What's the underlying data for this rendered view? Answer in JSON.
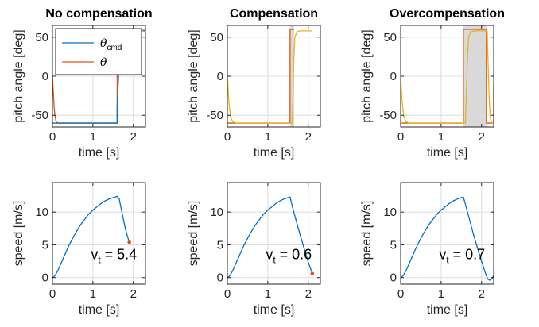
{
  "colors": {
    "cmd": "#0072BD",
    "theta": "#D95319",
    "shade": "#d9d9d9",
    "yellow": "#EDB120",
    "marker": "#D95319"
  },
  "chart_data": [
    {
      "type": "line",
      "id": "p1",
      "title": "No compensation",
      "xlabel": "time [s]",
      "ylabel": "pitch angle [deg]",
      "xlim": [
        0,
        2.3
      ],
      "ylim": [
        -65,
        65
      ],
      "xticks": [
        0,
        1,
        2
      ],
      "yticks": [
        -50,
        0,
        50
      ],
      "grid": true,
      "legend": {
        "placement": "top-left",
        "entries": [
          {
            "base": "θ",
            "sub": "cmd",
            "color": "cmd"
          },
          {
            "base": "θ",
            "sub": "",
            "color": "theta"
          }
        ]
      },
      "series": [
        {
          "id": "theta",
          "color": "theta",
          "points": [
            [
              0,
              0
            ],
            [
              0.02,
              -20
            ],
            [
              0.04,
              -38
            ],
            [
              0.06,
              -50
            ],
            [
              0.08,
              -56
            ],
            [
              0.1,
              -59
            ],
            [
              0.13,
              -60
            ],
            [
              1.6,
              -60
            ],
            [
              1.6,
              60
            ],
            [
              2.3,
              60
            ]
          ]
        },
        {
          "id": "cmd",
          "color": "cmd",
          "points": [
            [
              0,
              -60
            ],
            [
              1.6,
              -60
            ],
            [
              1.6,
              -40
            ],
            [
              1.68,
              58
            ],
            [
              2.3,
              58
            ]
          ]
        }
      ]
    },
    {
      "type": "line",
      "id": "p2",
      "title": "Compensation",
      "xlabel": "time [s]",
      "ylabel": "pitch angle [deg]",
      "xlim": [
        0,
        2.3
      ],
      "ylim": [
        -65,
        65
      ],
      "xticks": [
        0,
        1,
        2
      ],
      "yticks": [
        -50,
        0,
        50
      ],
      "grid": true,
      "shade": [
        [
          1.55,
          1.65
        ]
      ],
      "series": [
        {
          "id": "theta",
          "color": "theta",
          "points": [
            [
              0,
              -60
            ],
            [
              1.55,
              -60
            ],
            [
              1.55,
              60
            ],
            [
              1.65,
              60
            ]
          ]
        },
        {
          "id": "yellow",
          "color": "yellow",
          "points": [
            [
              0,
              0
            ],
            [
              0.04,
              -35
            ],
            [
              0.08,
              -52
            ],
            [
              0.13,
              -58
            ],
            [
              0.2,
              -60
            ],
            [
              1.6,
              -60
            ],
            [
              1.62,
              -30
            ],
            [
              1.64,
              20
            ],
            [
              1.67,
              50
            ],
            [
              1.72,
              57
            ],
            [
              1.8,
              58
            ],
            [
              2.1,
              58
            ]
          ]
        }
      ]
    },
    {
      "type": "line",
      "id": "p3",
      "title": "Overcompensation",
      "xlabel": "time [s]",
      "ylabel": "pitch angle [deg]",
      "xlim": [
        0,
        2.3
      ],
      "ylim": [
        -65,
        65
      ],
      "xticks": [
        0,
        1,
        2
      ],
      "yticks": [
        -50,
        0,
        50
      ],
      "grid": true,
      "shade": [
        [
          1.55,
          2.12
        ]
      ],
      "series": [
        {
          "id": "theta",
          "color": "theta",
          "points": [
            [
              0,
              -60
            ],
            [
              1.55,
              -60
            ],
            [
              1.55,
              60
            ],
            [
              2.12,
              60
            ],
            [
              2.12,
              -60
            ],
            [
              2.3,
              -60
            ],
            [
              2.3,
              -12
            ]
          ]
        },
        {
          "id": "yellow",
          "color": "yellow",
          "points": [
            [
              0,
              0
            ],
            [
              0.04,
              -35
            ],
            [
              0.08,
              -52
            ],
            [
              0.13,
              -58
            ],
            [
              0.2,
              -60
            ],
            [
              1.6,
              -60
            ],
            [
              1.62,
              -30
            ],
            [
              1.65,
              20
            ],
            [
              1.68,
              50
            ],
            [
              1.74,
              57
            ],
            [
              1.85,
              58
            ],
            [
              2.14,
              58
            ],
            [
              2.16,
              20
            ],
            [
              2.19,
              -30
            ],
            [
              2.22,
              -55
            ],
            [
              2.26,
              -60
            ],
            [
              2.3,
              -60
            ]
          ]
        }
      ]
    },
    {
      "type": "line",
      "id": "s1",
      "title": "",
      "xlabel": "time [s]",
      "ylabel": "speed [m/s]",
      "xlim": [
        0,
        2.3
      ],
      "ylim": [
        -1,
        14.5
      ],
      "xticks": [
        0,
        1,
        2
      ],
      "yticks": [
        0,
        5,
        10
      ],
      "grid": true,
      "annotation": {
        "base": "v",
        "sub": "t",
        "text": " = 5.4",
        "x": 0.95,
        "y": 2.8
      },
      "marker": [
        1.9,
        5.4
      ],
      "series": [
        {
          "id": "speed",
          "color": "cmd",
          "points": [
            [
              0,
              0
            ],
            [
              0.05,
              0.2
            ],
            [
              0.1,
              0.7
            ],
            [
              0.15,
              1.3
            ],
            [
              0.2,
              2.0
            ],
            [
              0.3,
              3.4
            ],
            [
              0.4,
              4.8
            ],
            [
              0.5,
              6.0
            ],
            [
              0.6,
              7.1
            ],
            [
              0.7,
              8.1
            ],
            [
              0.8,
              8.9
            ],
            [
              0.9,
              9.7
            ],
            [
              1.0,
              10.3
            ],
            [
              1.1,
              10.8
            ],
            [
              1.2,
              11.3
            ],
            [
              1.3,
              11.7
            ],
            [
              1.4,
              12.0
            ],
            [
              1.5,
              12.2
            ],
            [
              1.6,
              12.4
            ],
            [
              1.65,
              12.0
            ],
            [
              1.7,
              10.5
            ],
            [
              1.75,
              9.0
            ],
            [
              1.8,
              7.5
            ],
            [
              1.85,
              6.4
            ],
            [
              1.9,
              5.4
            ]
          ]
        }
      ]
    },
    {
      "type": "line",
      "id": "s2",
      "title": "",
      "xlabel": "time [s]",
      "ylabel": "speed [m/s]",
      "xlim": [
        0,
        2.3
      ],
      "ylim": [
        -1,
        14.5
      ],
      "xticks": [
        0,
        1,
        2
      ],
      "yticks": [
        0,
        5,
        10
      ],
      "grid": true,
      "annotation": {
        "base": "v",
        "sub": "t",
        "text": " = 0.6",
        "x": 0.95,
        "y": 2.8
      },
      "marker": [
        2.1,
        0.6
      ],
      "series": [
        {
          "id": "speed",
          "color": "cmd",
          "points": [
            [
              0,
              0
            ],
            [
              0.05,
              0.2
            ],
            [
              0.1,
              0.7
            ],
            [
              0.15,
              1.3
            ],
            [
              0.2,
              2.0
            ],
            [
              0.3,
              3.4
            ],
            [
              0.4,
              4.8
            ],
            [
              0.5,
              6.0
            ],
            [
              0.6,
              7.1
            ],
            [
              0.7,
              8.1
            ],
            [
              0.8,
              8.9
            ],
            [
              0.9,
              9.7
            ],
            [
              1.0,
              10.3
            ],
            [
              1.1,
              10.8
            ],
            [
              1.2,
              11.3
            ],
            [
              1.3,
              11.7
            ],
            [
              1.4,
              12.0
            ],
            [
              1.5,
              12.2
            ],
            [
              1.55,
              12.3
            ],
            [
              1.6,
              11.0
            ],
            [
              1.7,
              8.7
            ],
            [
              1.8,
              6.5
            ],
            [
              1.9,
              4.4
            ],
            [
              2.0,
              2.4
            ],
            [
              2.1,
              0.6
            ]
          ]
        }
      ]
    },
    {
      "type": "line",
      "id": "s3",
      "title": "",
      "xlabel": "time [s]",
      "ylabel": "speed [m/s]",
      "xlim": [
        0,
        2.3
      ],
      "ylim": [
        -1,
        14.5
      ],
      "xticks": [
        0,
        1,
        2
      ],
      "yticks": [
        0,
        5,
        10
      ],
      "grid": true,
      "annotation": {
        "base": "v",
        "sub": "t",
        "text": " = 0.7",
        "x": 0.95,
        "y": 2.8
      },
      "series": [
        {
          "id": "speed",
          "color": "cmd",
          "points": [
            [
              0,
              0
            ],
            [
              0.05,
              0.2
            ],
            [
              0.1,
              0.7
            ],
            [
              0.15,
              1.3
            ],
            [
              0.2,
              2.0
            ],
            [
              0.3,
              3.4
            ],
            [
              0.4,
              4.8
            ],
            [
              0.5,
              6.0
            ],
            [
              0.6,
              7.1
            ],
            [
              0.7,
              8.1
            ],
            [
              0.8,
              8.9
            ],
            [
              0.9,
              9.7
            ],
            [
              1.0,
              10.3
            ],
            [
              1.1,
              10.8
            ],
            [
              1.2,
              11.3
            ],
            [
              1.3,
              11.7
            ],
            [
              1.4,
              12.0
            ],
            [
              1.5,
              12.2
            ],
            [
              1.55,
              12.3
            ],
            [
              1.6,
              11.2
            ],
            [
              1.7,
              8.9
            ],
            [
              1.8,
              6.6
            ],
            [
              1.9,
              4.5
            ],
            [
              2.0,
              2.5
            ],
            [
              2.1,
              0.6
            ],
            [
              2.15,
              -0.2
            ],
            [
              2.2,
              -0.4
            ],
            [
              2.25,
              -0.2
            ],
            [
              2.3,
              0.3
            ]
          ]
        }
      ]
    }
  ]
}
